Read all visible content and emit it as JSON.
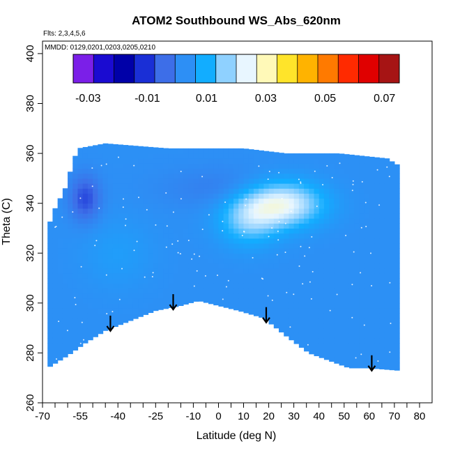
{
  "chart_data": {
    "type": "heatmap",
    "title": "ATOM2 Southbound WS_Abs_620nm",
    "flights_note": "Flts: 2,3,4,5,6",
    "dates_note": "MMDD: 0129,0201,0203,0205,0210",
    "xlabel": "Latitude (deg N)",
    "ylabel": "Theta (C)",
    "xlim": [
      -70,
      85
    ],
    "ylim": [
      260,
      405
    ],
    "x_ticks": [
      -70,
      -55,
      -40,
      -25,
      -10,
      0,
      10,
      20,
      30,
      40,
      50,
      60,
      70,
      80
    ],
    "x_minor_ticks": [
      -65,
      -60,
      -50,
      -45,
      -35,
      -30,
      -20,
      -15,
      -5,
      5,
      15,
      25,
      35,
      45,
      55,
      65,
      75
    ],
    "y_ticks": [
      260,
      280,
      300,
      320,
      340,
      360,
      380,
      400
    ],
    "colorbar": {
      "range": [
        -0.035,
        0.075
      ],
      "tick_values": [
        -0.03,
        -0.01,
        0.01,
        0.03,
        0.05,
        0.07
      ],
      "tick_labels": [
        "-0.03",
        "-0.01",
        "0.01",
        "0.03",
        "0.05",
        "0.07"
      ],
      "colors": [
        "#7b1fe8",
        "#1a0bd1",
        "#0000a8",
        "#1a2fd6",
        "#3d6ee8",
        "#2d8ff5",
        "#12adff",
        "#8fd1ff",
        "#e8f6ff",
        "#fff9b8",
        "#ffe42a",
        "#ffb300",
        "#ff7a00",
        "#ff2a00",
        "#e00000",
        "#a61414"
      ]
    },
    "field": {
      "background_value": 0.003,
      "lat_bounds": [
        -68,
        72
      ],
      "theta_top": [
        [
          -68,
          330
        ],
        [
          -65,
          338
        ],
        [
          -61,
          346
        ],
        [
          -58,
          356
        ],
        [
          -56,
          362
        ],
        [
          -45,
          364
        ],
        [
          -20,
          362
        ],
        [
          10,
          362
        ],
        [
          27,
          360
        ],
        [
          48,
          360
        ],
        [
          67,
          358
        ],
        [
          72,
          355
        ]
      ],
      "theta_bottom": [
        [
          -68,
          274
        ],
        [
          -60,
          279
        ],
        [
          -53,
          284
        ],
        [
          -45,
          289
        ],
        [
          -35,
          293
        ],
        [
          -25,
          297
        ],
        [
          -15,
          299
        ],
        [
          -8,
          301
        ],
        [
          0,
          299
        ],
        [
          8,
          297
        ],
        [
          18,
          294
        ],
        [
          28,
          286
        ],
        [
          36,
          280
        ],
        [
          44,
          277
        ],
        [
          52,
          274
        ],
        [
          60,
          274
        ],
        [
          72,
          273
        ]
      ],
      "features": [
        {
          "lat": 25,
          "theta": 340,
          "value": 0.025,
          "spread_lat": 16,
          "spread_theta": 9
        },
        {
          "lat": 12,
          "theta": 333,
          "value": 0.014,
          "spread_lat": 12,
          "spread_theta": 10
        },
        {
          "lat": -53,
          "theta": 342,
          "value": -0.008,
          "spread_lat": 6,
          "spread_theta": 9
        },
        {
          "lat": 5,
          "theta": 346,
          "value": -0.001,
          "spread_lat": 26,
          "spread_theta": 8
        },
        {
          "lat": -40,
          "theta": 320,
          "value": 0.006,
          "spread_lat": 14,
          "spread_theta": 14
        }
      ]
    },
    "arrows_lat": [
      -43,
      -18,
      19,
      61
    ]
  }
}
